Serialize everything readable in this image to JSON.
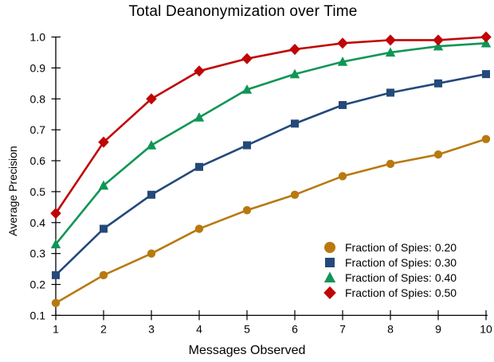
{
  "title": "Total Deanonymization over Time",
  "chart_data": {
    "type": "line",
    "title": "Total Deanonymization over Time",
    "xlabel": "Messages Observed",
    "ylabel": "Average Precision",
    "x": [
      1,
      2,
      3,
      4,
      5,
      6,
      7,
      8,
      9,
      10
    ],
    "x_tick_labels": [
      "1",
      "2",
      "3",
      "4",
      "5",
      "6",
      "7",
      "8",
      "9",
      "10"
    ],
    "y_ticks": [
      0.1,
      0.2,
      0.3,
      0.4,
      0.5,
      0.6,
      0.7,
      0.8,
      0.9,
      1.0
    ],
    "y_tick_labels": [
      "0.1",
      "0.2",
      "0.3",
      "0.4",
      "0.5",
      "0.6",
      "0.7",
      "0.8",
      "0.9",
      "1.0"
    ],
    "xlim": [
      1,
      10
    ],
    "ylim": [
      0.1,
      1.0
    ],
    "grid": false,
    "legend_position": "lower right",
    "axis_color": "#000000",
    "series": [
      {
        "name": "Fraction of Spies: 0.20",
        "marker": "circle",
        "color": "#B8790F",
        "values": [
          0.14,
          0.23,
          0.3,
          0.38,
          0.44,
          0.49,
          0.55,
          0.59,
          0.62,
          0.67
        ]
      },
      {
        "name": "Fraction of Spies: 0.30",
        "marker": "square",
        "color": "#24497A",
        "values": [
          0.23,
          0.38,
          0.49,
          0.58,
          0.65,
          0.72,
          0.78,
          0.82,
          0.85,
          0.88
        ]
      },
      {
        "name": "Fraction of Spies: 0.40",
        "marker": "triangle",
        "color": "#0F9656",
        "values": [
          0.33,
          0.52,
          0.65,
          0.74,
          0.83,
          0.88,
          0.92,
          0.95,
          0.97,
          0.98
        ]
      },
      {
        "name": "Fraction of Spies: 0.50",
        "marker": "diamond",
        "color": "#C00505",
        "values": [
          0.43,
          0.66,
          0.8,
          0.89,
          0.93,
          0.96,
          0.98,
          0.99,
          0.99,
          1.0
        ]
      }
    ]
  }
}
